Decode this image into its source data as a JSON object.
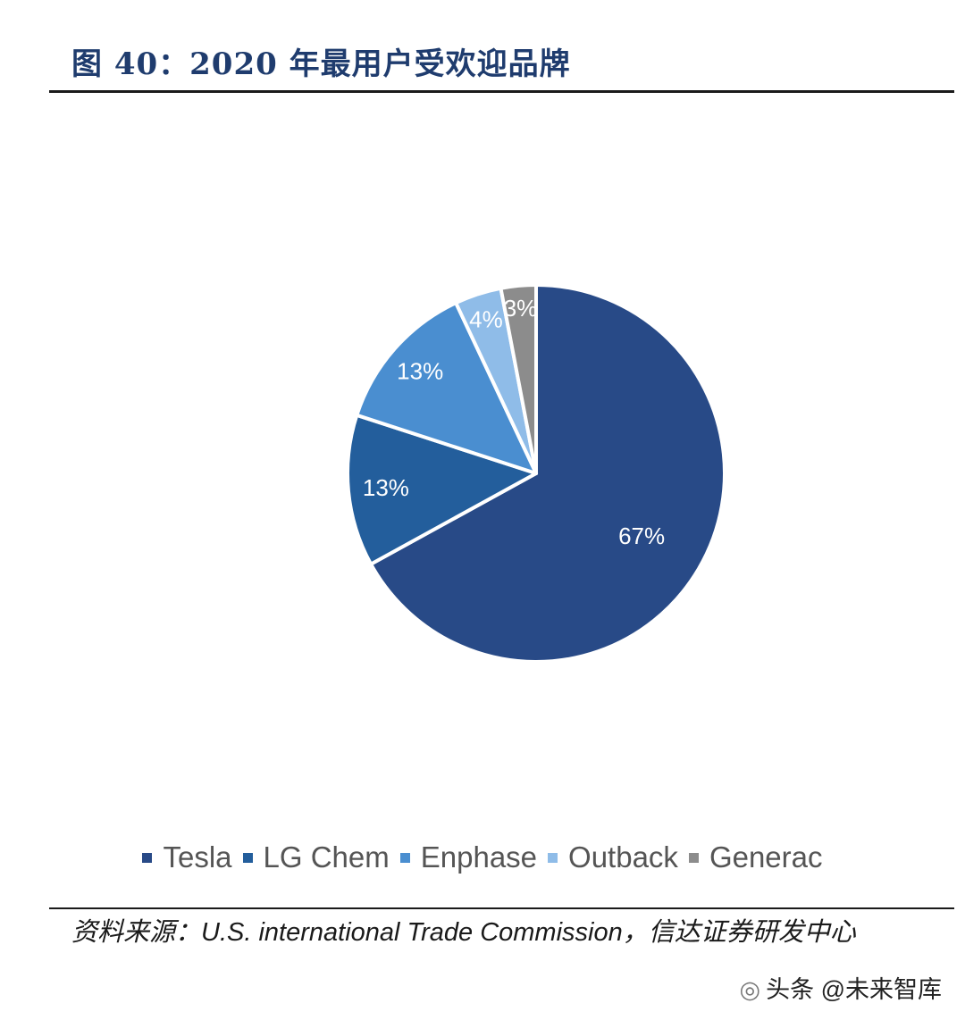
{
  "title": "图 40：2020 年最用户受欢迎品牌",
  "chart_data": {
    "type": "pie",
    "categories": [
      "Tesla",
      "LG Chem",
      "Enphase",
      "Outback",
      "Generac"
    ],
    "values": [
      67,
      13,
      13,
      4,
      3
    ],
    "labels": [
      "67%",
      "13%",
      "13%",
      "4%",
      "3%"
    ],
    "colors": [
      "#284a87",
      "#235e9c",
      "#4a8ed0",
      "#8fbce8",
      "#8c8c8c"
    ],
    "legend_position": "bottom",
    "start": "12 o'clock",
    "direction": "clockwise"
  },
  "legend": {
    "items": [
      "Tesla",
      "LG Chem",
      "Enphase",
      "Outback",
      "Generac"
    ]
  },
  "source": {
    "prefix": "资料来源：",
    "text": "U.S. international Trade Commission，信达证券研发中心"
  },
  "watermark": {
    "icon": "wechat-bubble-icon",
    "glyph": "◎",
    "text": "头条 @未来智库"
  }
}
